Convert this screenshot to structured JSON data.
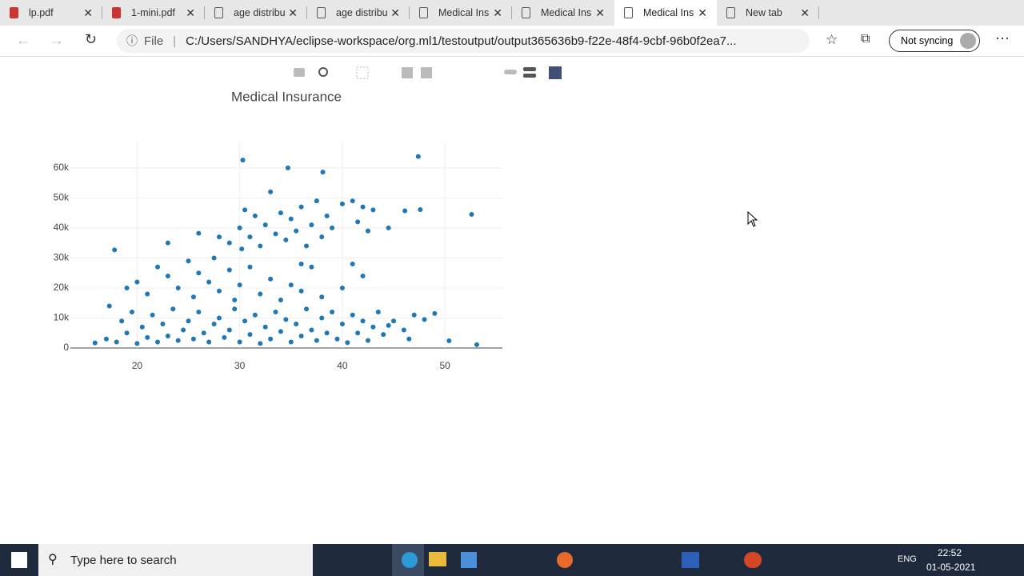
{
  "browser": {
    "tabs": [
      "lp.pdf",
      "1-mini.pdf",
      "age distribu",
      "age distribu",
      "Medical Ins",
      "Medical Ins",
      "Medical Ins",
      "New tab"
    ],
    "address_label": "File",
    "url": "C:/Users/SANDHYA/eclipse-workspace/org.ml1/testoutput/output365636b9-f22e-48f4-9cbf-96b0f2ea7...",
    "sync": "Not syncing"
  },
  "chart_data": {
    "type": "scatter",
    "title": "Medical Insurance",
    "color": "#1f77b4",
    "grid": true,
    "xlim": [
      13.5,
      55.6
    ],
    "ylim": [
      0,
      68500
    ],
    "xticks": [
      20,
      30,
      40,
      50
    ],
    "yticks": [
      0,
      {
        "value": 10000,
        "label": "10k"
      },
      {
        "value": 20000,
        "label": "20k"
      },
      {
        "value": 30000,
        "label": "30k"
      },
      {
        "value": 40000,
        "label": "40k"
      },
      {
        "value": 50000,
        "label": "50k"
      },
      {
        "value": 60000,
        "label": "60k"
      }
    ],
    "x": [
      17,
      17.3,
      18,
      18.5,
      19,
      19.5,
      20,
      20.5,
      21,
      21.5,
      22,
      22.5,
      23,
      23.5,
      24,
      24.5,
      25,
      25.5,
      26,
      26.5,
      27,
      27.5,
      28,
      28.5,
      29,
      29.5,
      30,
      30.5,
      31,
      31.5,
      32,
      32.5,
      33,
      33.5,
      34,
      34.5,
      35,
      35.5,
      36,
      36.5,
      37,
      37.5,
      38,
      38.5,
      39,
      39.5,
      40,
      40.5,
      41,
      41.5,
      42,
      42.5,
      43,
      43.5,
      44,
      45,
      46,
      47,
      48,
      49,
      46.5,
      44.5,
      19,
      20,
      21,
      22,
      23,
      24,
      25,
      25.5,
      26,
      27,
      27.5,
      28,
      29,
      29.5,
      30,
      31,
      32,
      33,
      34,
      35,
      36,
      37,
      38,
      40,
      41,
      42,
      36,
      30,
      30.5,
      31,
      31.5,
      32,
      32.5,
      33,
      33.5,
      34,
      34.5,
      35,
      35.5,
      36,
      36.5,
      37,
      37.5,
      38,
      38.5,
      39,
      40,
      41,
      41.5,
      42,
      42.5,
      43,
      44.5,
      28,
      29,
      30.2,
      30.3,
      34.7,
      38.1,
      47.4,
      52.6,
      47.6,
      46.1,
      53.1,
      50.4,
      17.8,
      15.9,
      23,
      26
    ],
    "values": [
      3000,
      14000,
      2000,
      9000,
      5000,
      12000,
      1500,
      7000,
      3500,
      11000,
      2000,
      8000,
      4000,
      13000,
      2500,
      6000,
      9000,
      3000,
      12000,
      5000,
      2000,
      8000,
      10000,
      3500,
      6000,
      13000,
      2000,
      9000,
      4500,
      11000,
      1500,
      7000,
      3000,
      12000,
      5500,
      9500,
      2000,
      8000,
      4000,
      13000,
      6000,
      2500,
      10000,
      5000,
      12000,
      3000,
      8000,
      1800,
      11000,
      5000,
      9000,
      2500,
      7000,
      12000,
      4500,
      9000,
      6000,
      11000,
      9500,
      11500,
      3000,
      7500,
      20000,
      22000,
      18000,
      27000,
      24000,
      20000,
      29000,
      17000,
      25000,
      22000,
      30000,
      19000,
      26000,
      16000,
      21000,
      27000,
      18000,
      23000,
      16000,
      21000,
      19000,
      27000,
      17000,
      20000,
      28000,
      24000,
      28000,
      40000,
      46000,
      37000,
      44000,
      34000,
      41000,
      52000,
      38000,
      45000,
      36000,
      43000,
      39000,
      47000,
      34000,
      41000,
      49000,
      37000,
      44000,
      40000,
      48000,
      49000,
      42000,
      47000,
      39000,
      46000,
      40000,
      37000,
      35000,
      33000,
      62600,
      60000,
      58600,
      63800,
      44500,
      46100,
      45700,
      1100,
      2400,
      32700,
      1700,
      35000,
      38200
    ]
  },
  "taskbar": {
    "search": "Type here to search",
    "language": "ENG",
    "time": "22:52",
    "date": "01-05-2021"
  }
}
